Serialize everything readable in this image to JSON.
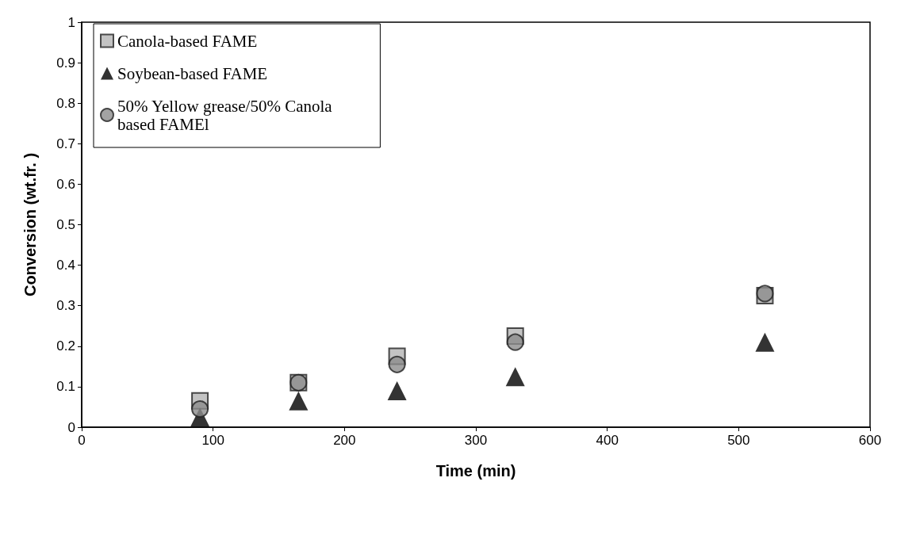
{
  "chart_data": {
    "type": "scatter",
    "xlabel": "Time (min)",
    "ylabel": "Conversion (wt.fr. )",
    "xlim": [
      0,
      600
    ],
    "xticks": [
      0,
      100,
      200,
      300,
      400,
      500,
      600
    ],
    "ylim": [
      0,
      1
    ],
    "yticks": [
      0,
      0.1,
      0.2,
      0.3,
      0.4,
      0.5,
      0.6,
      0.7,
      0.8,
      0.9,
      1
    ],
    "grid": false,
    "legend": "top left",
    "series": [
      {
        "name": "Canola-based FAME",
        "color": "#b4b4b4",
        "marker": "square",
        "x": [
          90,
          165,
          240,
          330,
          520
        ],
        "values": [
          0.065,
          0.11,
          0.175,
          0.225,
          0.325
        ]
      },
      {
        "name": "Soybean-based FAME",
        "color": "#000000",
        "marker": "triangle",
        "x": [
          90,
          165,
          240,
          330,
          520
        ],
        "values": [
          0.025,
          0.065,
          0.09,
          0.125,
          0.21
        ]
      },
      {
        "name": "50% Yellow grease/50% Canola\nbased FAMEl",
        "color": "#8c8c8c",
        "marker": "circle",
        "x": [
          90,
          165,
          240,
          330,
          520
        ],
        "values": [
          0.045,
          0.11,
          0.155,
          0.21,
          0.33
        ]
      }
    ]
  }
}
